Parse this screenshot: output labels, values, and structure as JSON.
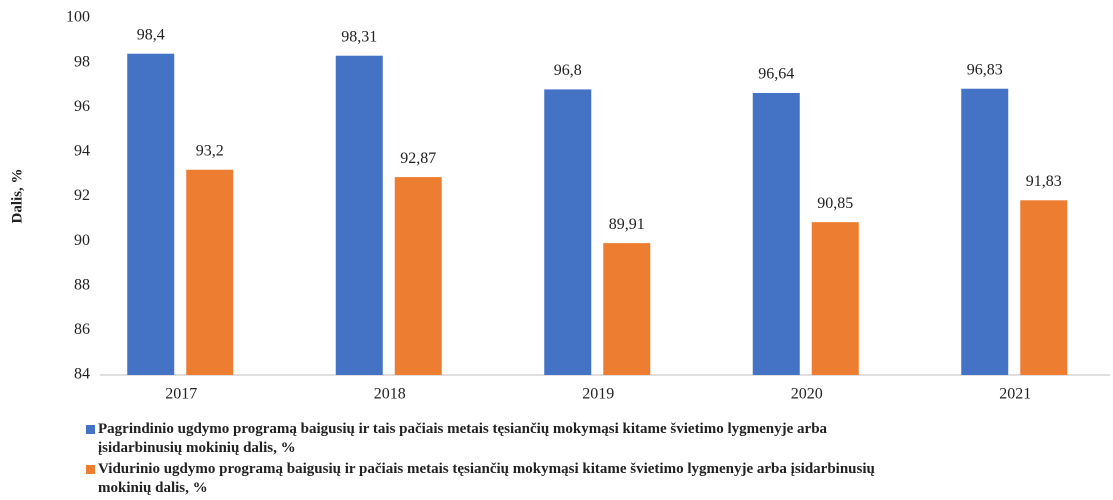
{
  "chart_data": {
    "type": "bar",
    "y_label": "Dalis, %",
    "categories": [
      "2017",
      "2018",
      "2019",
      "2020",
      "2021"
    ],
    "series": [
      {
        "name": "Pagrindinio ugdymo programą baigusių ir tais pačiais metais tęsiančių mokymąsi kitame švietimo lygmenyje arba įsidarbinusių mokinių dalis, %",
        "color": "#4472c4",
        "values": [
          98.4,
          98.31,
          96.8,
          96.64,
          96.83
        ],
        "value_labels": [
          "98,4",
          "98,31",
          "96,8",
          "96,64",
          "96,83"
        ]
      },
      {
        "name": "Vidurinio ugdymo programą baigusių ir pačiais metais tęsiančių mokymąsi kitame švietimo lygmenyje arba įsidarbinusių mokinių dalis, %",
        "color": "#ed7d31",
        "values": [
          93.2,
          92.87,
          89.91,
          90.85,
          91.83
        ],
        "value_labels": [
          "93,2",
          "92,87",
          "89,91",
          "90,85",
          "91,83"
        ]
      }
    ],
    "ylim": [
      84,
      100
    ],
    "yticks": [
      84,
      86,
      88,
      90,
      92,
      94,
      96,
      98,
      100
    ],
    "grid": false,
    "legend": "bottom"
  }
}
